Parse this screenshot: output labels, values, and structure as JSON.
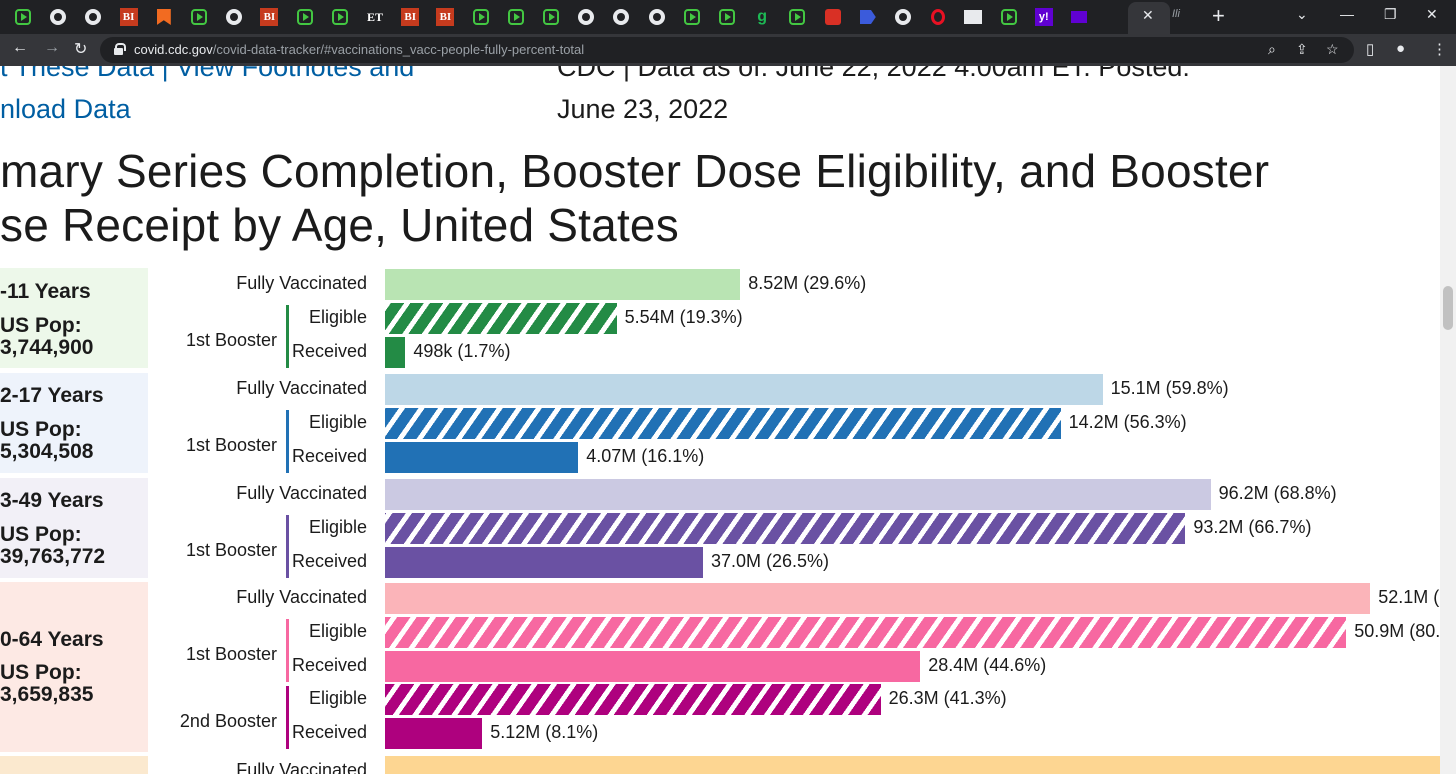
{
  "browser": {
    "tabs": [
      {
        "icon": "play-icon"
      },
      {
        "icon": "circle-icon"
      },
      {
        "icon": "circle-icon"
      },
      {
        "icon": "bi-icon",
        "text": "BI"
      },
      {
        "icon": "bookmark-icon"
      },
      {
        "icon": "play-icon"
      },
      {
        "icon": "circle-icon"
      },
      {
        "icon": "bi-icon",
        "text": "BI"
      },
      {
        "icon": "play-icon"
      },
      {
        "icon": "play-icon"
      },
      {
        "icon": "et-icon",
        "text": "ET"
      },
      {
        "icon": "bi-icon",
        "text": "BI"
      },
      {
        "icon": "bi-icon",
        "text": "BI"
      },
      {
        "icon": "play-icon"
      },
      {
        "icon": "play-icon"
      },
      {
        "icon": "play-icon"
      },
      {
        "icon": "circle-icon"
      },
      {
        "icon": "circle-icon"
      },
      {
        "icon": "circle-icon"
      },
      {
        "icon": "play-icon"
      },
      {
        "icon": "play-icon"
      },
      {
        "icon": "g-icon",
        "text": "g"
      },
      {
        "icon": "play-icon"
      },
      {
        "icon": "red-icon"
      },
      {
        "icon": "blue-arrow-icon"
      },
      {
        "icon": "circle-icon"
      },
      {
        "icon": "opera-icon"
      },
      {
        "icon": "dark-icon"
      },
      {
        "icon": "play-icon"
      },
      {
        "icon": "yahoo-icon",
        "text": "y!"
      },
      {
        "icon": "mail-icon"
      }
    ],
    "active_tab_close": "✕",
    "last_tab_text": "Ili",
    "new_tab_label": "+",
    "url_host": "covid.cdc.gov",
    "url_path": "/covid-data-tracker/#vaccinations_vacc-people-fully-percent-total"
  },
  "page": {
    "links_line1": "t These Data | View Footnotes and",
    "links_line2": "nload Data",
    "data_as_of_line1": "CDC | Data as of: June 22, 2022 4:00am ET. Posted:",
    "data_as_of_line2": "June 23, 2022",
    "title_line1": "mary Series Completion, Booster Dose Eligibility, and Booster",
    "title_line2": "se Receipt by Age, United States"
  },
  "labels": {
    "fully_vaccinated": "Fully Vaccinated",
    "first_booster": "1st Booster",
    "second_booster": "2nd Booster",
    "eligible": "Eligible",
    "received": "Received"
  },
  "chart_data": {
    "type": "bar",
    "orientation": "horizontal",
    "groups": [
      {
        "age": "-11 Years",
        "pop_label": "US Pop:",
        "pop_value": "3,744,900",
        "color_light": "#b9e4b3",
        "color_dark": "#238b45",
        "panel_bg": "#edf8ea",
        "bars": [
          {
            "kind": "Fully Vaccinated",
            "value": 8.52,
            "label": "8.52M (29.6%)",
            "style": "light"
          },
          {
            "kind": "1st Booster Eligible",
            "value": 5.54,
            "label": "5.54M (19.3%)",
            "style": "hatch"
          },
          {
            "kind": "1st Booster Received",
            "value": 0.498,
            "label": "498k (1.7%)",
            "style": "solid"
          }
        ]
      },
      {
        "age": "2-17 Years",
        "pop_label": "US Pop:",
        "pop_value": "5,304,508",
        "color_light": "#bdd7e7",
        "color_dark": "#2171b5",
        "panel_bg": "#eef3fb",
        "bars": [
          {
            "kind": "Fully Vaccinated",
            "value": 15.1,
            "label": "15.1M (59.8%)",
            "style": "light"
          },
          {
            "kind": "1st Booster Eligible",
            "value": 14.2,
            "label": "14.2M (56.3%)",
            "style": "hatch"
          },
          {
            "kind": "1st Booster Received",
            "value": 4.07,
            "label": "4.07M (16.1%)",
            "style": "solid"
          }
        ]
      },
      {
        "age": "3-49 Years",
        "pop_label": "US Pop:",
        "pop_value": "39,763,772",
        "color_light": "#cbc9e2",
        "color_dark": "#6a51a3",
        "panel_bg": "#f2f0f7",
        "bars": [
          {
            "kind": "Fully Vaccinated",
            "value": 96.2,
            "label": "96.2M (68.8%)",
            "style": "light"
          },
          {
            "kind": "1st Booster Eligible",
            "value": 93.2,
            "label": "93.2M (66.7%)",
            "style": "hatch"
          },
          {
            "kind": "1st Booster Received",
            "value": 37.0,
            "label": "37.0M (26.5%)",
            "style": "solid"
          }
        ]
      },
      {
        "age": "0-64 Years",
        "pop_label": "US Pop:",
        "pop_value": "3,659,835",
        "color_light": "#fbb4b9",
        "color_dark": "#f768a1",
        "color_dark2": "#ae017e",
        "panel_bg": "#fde9e4",
        "bars": [
          {
            "kind": "Fully Vaccinated",
            "value": 52.1,
            "label": "52.1M (",
            "style": "light"
          },
          {
            "kind": "1st Booster Eligible",
            "value": 50.9,
            "label": "50.9M (80.",
            "style": "hatch"
          },
          {
            "kind": "1st Booster Received",
            "value": 28.4,
            "label": "28.4M (44.6%)",
            "style": "solid"
          },
          {
            "kind": "2nd Booster Eligible",
            "value": 26.3,
            "label": "26.3M (41.3%)",
            "style": "hatch2"
          },
          {
            "kind": "2nd Booster Received",
            "value": 5.12,
            "label": "5.12M (8.1%)",
            "style": "solid2"
          }
        ]
      },
      {
        "age": "",
        "pop_label": "",
        "pop_value": "",
        "color_light": "#fdd692",
        "panel_bg": "#fbe9cf",
        "bars": [
          {
            "kind": "Fully Vaccinated",
            "value": null,
            "label": "",
            "style": "light"
          }
        ]
      }
    ]
  }
}
